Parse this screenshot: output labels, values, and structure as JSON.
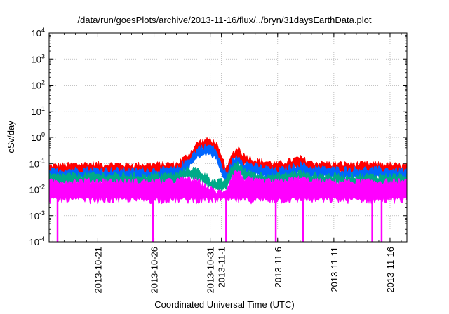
{
  "chart_data": {
    "type": "line",
    "title": "/data/run/goesPlots/archive/2013-11-16/flux/../bryn/31daysEarthData.plot",
    "xlabel": "Coordinated Universal Time (UTC)",
    "ylabel": "cSv/day",
    "yscale": "log",
    "ylim": [
      0.0001,
      10000
    ],
    "y_ticks": [
      "10-4",
      "10-3",
      "10-2",
      "10-1",
      "100",
      "101",
      "102",
      "103",
      "104"
    ],
    "xlim": [
      "2013-10-16T16:00",
      "2013-11-17T12:00"
    ],
    "x_ticks": [
      {
        "date": "2013-10-21",
        "label": "2013-10-21"
      },
      {
        "date": "2013-10-26",
        "label": "2013-10-26"
      },
      {
        "date": "2013-10-31",
        "label": "2013-10-31"
      },
      {
        "date": "2013-11-01",
        "label": "2013-11-1"
      },
      {
        "date": "2013-11-06",
        "label": "2013-11-6"
      },
      {
        "date": "2013-11-11",
        "label": "2013-11-11"
      },
      {
        "date": "2013-11-16",
        "label": "2013-11-16"
      }
    ],
    "grid": true,
    "series": [
      {
        "color": "#ff0000",
        "x": [
          "2013-10-17",
          "2013-10-20",
          "2013-10-24",
          "2013-10-28",
          "2013-10-29",
          "2013-10-30",
          "2013-10-31",
          "2013-10-31T12:00",
          "2013-11-01",
          "2013-11-01T12:00",
          "2013-11-02",
          "2013-11-02T12:00",
          "2013-11-03",
          "2013-11-04",
          "2013-11-06",
          "2013-11-08",
          "2013-11-09",
          "2013-11-11",
          "2013-11-13",
          "2013-11-15",
          "2013-11-17"
        ],
        "y": [
          0.06,
          0.07,
          0.065,
          0.07,
          0.15,
          0.5,
          0.6,
          0.45,
          0.12,
          0.05,
          0.18,
          0.3,
          0.15,
          0.1,
          0.07,
          0.12,
          0.08,
          0.07,
          0.07,
          0.07,
          0.06
        ]
      },
      {
        "color": "#0066ff",
        "x": [
          "2013-10-17",
          "2013-10-20",
          "2013-10-24",
          "2013-10-28",
          "2013-10-29",
          "2013-10-30",
          "2013-10-31",
          "2013-10-31T12:00",
          "2013-11-01",
          "2013-11-01T12:00",
          "2013-11-02",
          "2013-11-02T12:00",
          "2013-11-03",
          "2013-11-04",
          "2013-11-06",
          "2013-11-08",
          "2013-11-09",
          "2013-11-11",
          "2013-11-13",
          "2013-11-15",
          "2013-11-17"
        ],
        "y": [
          0.04,
          0.045,
          0.04,
          0.045,
          0.1,
          0.3,
          0.35,
          0.25,
          0.06,
          0.03,
          0.1,
          0.15,
          0.08,
          0.06,
          0.04,
          0.07,
          0.05,
          0.045,
          0.045,
          0.045,
          0.04
        ]
      },
      {
        "color": "#00aa88",
        "x": [
          "2013-10-17",
          "2013-10-20",
          "2013-10-24",
          "2013-10-28",
          "2013-10-29",
          "2013-10-30",
          "2013-10-31",
          "2013-10-31T12:00",
          "2013-11-01",
          "2013-11-01T12:00",
          "2013-11-02",
          "2013-11-02T12:00",
          "2013-11-03",
          "2013-11-04",
          "2013-11-06",
          "2013-11-08",
          "2013-11-09",
          "2013-11-11",
          "2013-11-13",
          "2013-11-15",
          "2013-11-17"
        ],
        "y": [
          0.025,
          0.028,
          0.025,
          0.028,
          0.05,
          0.04,
          0.02,
          0.015,
          0.015,
          0.02,
          0.06,
          0.08,
          0.04,
          0.03,
          0.025,
          0.035,
          0.028,
          0.025,
          0.025,
          0.025,
          0.025
        ]
      },
      {
        "color": "#ff00ff",
        "x": [
          "2013-10-17",
          "2013-10-20",
          "2013-10-24",
          "2013-10-28",
          "2013-10-29",
          "2013-10-30",
          "2013-10-31",
          "2013-10-31T12:00",
          "2013-11-01",
          "2013-11-01T12:00",
          "2013-11-02",
          "2013-11-02T12:00",
          "2013-11-03",
          "2013-11-04",
          "2013-11-06",
          "2013-11-08",
          "2013-11-09",
          "2013-11-11",
          "2013-11-13",
          "2013-11-15",
          "2013-11-17"
        ],
        "y": [
          0.015,
          0.016,
          0.015,
          0.016,
          0.02,
          0.015,
          0.008,
          0.006,
          0.006,
          0.008,
          0.03,
          0.04,
          0.02,
          0.016,
          0.015,
          0.02,
          0.016,
          0.015,
          0.015,
          0.015,
          0.015
        ],
        "y_low": 0.004,
        "dropouts_to": 0.0001,
        "dropouts": [
          "2013-10-17T10:00",
          "2013-10-25T22:00",
          "2013-11-01T10:00",
          "2013-11-05T20:00",
          "2013-11-08T06:00",
          "2013-11-14T10:00",
          "2013-11-15T06:00"
        ]
      }
    ]
  }
}
